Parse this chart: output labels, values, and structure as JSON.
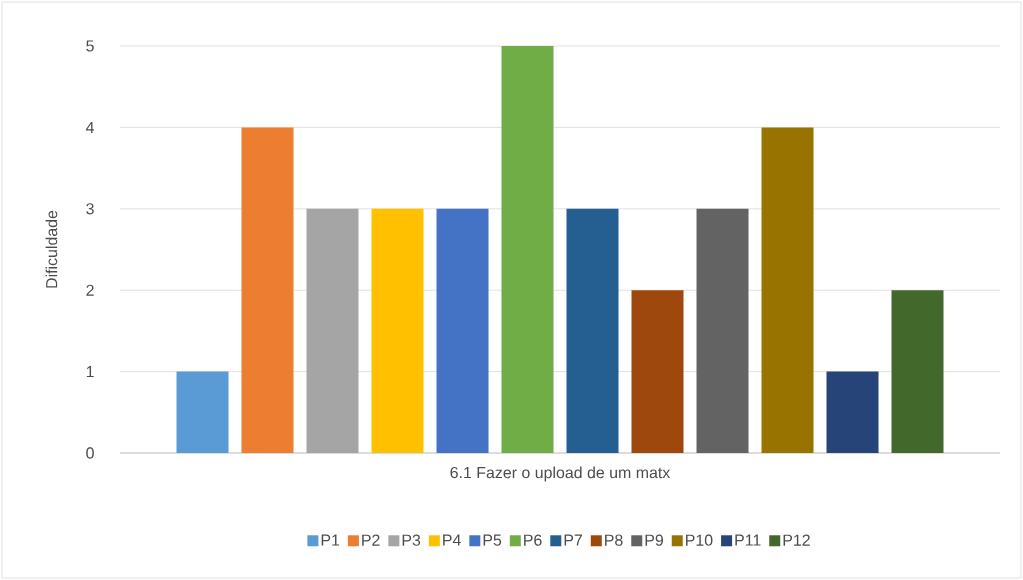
{
  "chart_data": {
    "type": "bar",
    "ylabel": "Dificuldade",
    "categories": [
      "6.1 Fazer o upload de um matx"
    ],
    "series": [
      {
        "name": "P1",
        "color": "#5b9bd5",
        "values": [
          1
        ]
      },
      {
        "name": "P2",
        "color": "#ed7d31",
        "values": [
          4
        ]
      },
      {
        "name": "P3",
        "color": "#a5a5a5",
        "values": [
          3
        ]
      },
      {
        "name": "P4",
        "color": "#ffc000",
        "values": [
          3
        ]
      },
      {
        "name": "P5",
        "color": "#4472c4",
        "values": [
          3
        ]
      },
      {
        "name": "P6",
        "color": "#70ad47",
        "values": [
          5
        ]
      },
      {
        "name": "P7",
        "color": "#255e91",
        "values": [
          3
        ]
      },
      {
        "name": "P8",
        "color": "#9e480e",
        "values": [
          2
        ]
      },
      {
        "name": "P9",
        "color": "#636363",
        "values": [
          3
        ]
      },
      {
        "name": "P10",
        "color": "#997300",
        "values": [
          4
        ]
      },
      {
        "name": "P11",
        "color": "#264478",
        "values": [
          1
        ]
      },
      {
        "name": "P12",
        "color": "#43682b",
        "values": [
          2
        ]
      }
    ],
    "ylim": [
      0,
      5
    ],
    "yticks": [
      0,
      1,
      2,
      3,
      4,
      5
    ],
    "grid": "y",
    "legend": "bottom"
  }
}
